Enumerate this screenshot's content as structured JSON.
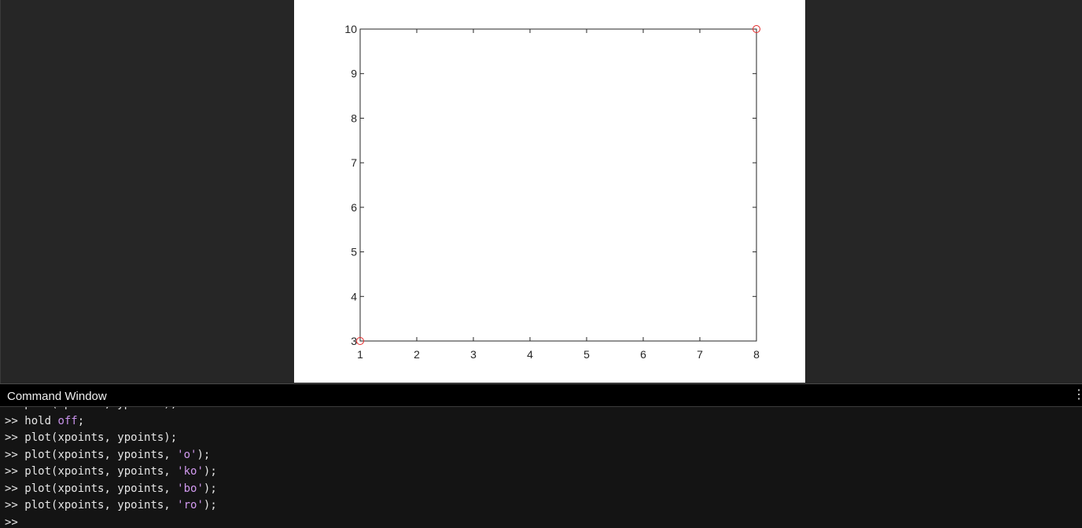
{
  "command_window": {
    "title": "Command Window",
    "menu_icon": "vertical-ellipsis-icon",
    "lines": [
      {
        "prompt": ">> ",
        "code": "plot(xpoints, ypoints);"
      },
      {
        "prompt": ">> ",
        "code": "hold ",
        "kw": "off",
        "rest": ";"
      },
      {
        "prompt": ">> ",
        "code": "plot(xpoints, ypoints);"
      },
      {
        "prompt": ">> ",
        "code": "plot(xpoints, ypoints, ",
        "str": "'o'",
        "rest": ");"
      },
      {
        "prompt": ">> ",
        "code": "plot(xpoints, ypoints, ",
        "str": "'ko'",
        "rest": ");"
      },
      {
        "prompt": ">> ",
        "code": "plot(xpoints, ypoints, ",
        "str": "'bo'",
        "rest": ");"
      },
      {
        "prompt": ">> ",
        "code": "plot(xpoints, ypoints, ",
        "str": "'ro'",
        "rest": ");"
      },
      {
        "prompt": ">> ",
        "code": ""
      }
    ]
  },
  "chart_data": {
    "type": "scatter",
    "x": [
      1,
      8
    ],
    "y": [
      3,
      10
    ],
    "marker": "o",
    "marker_color": "#e32626",
    "xlim": [
      1,
      8
    ],
    "ylim": [
      3,
      10
    ],
    "xticks": [
      "1",
      "2",
      "3",
      "4",
      "5",
      "6",
      "7",
      "8"
    ],
    "yticks": [
      "3",
      "4",
      "5",
      "6",
      "7",
      "8",
      "9",
      "10"
    ],
    "grid": false,
    "title": "",
    "xlabel": "",
    "ylabel": ""
  }
}
